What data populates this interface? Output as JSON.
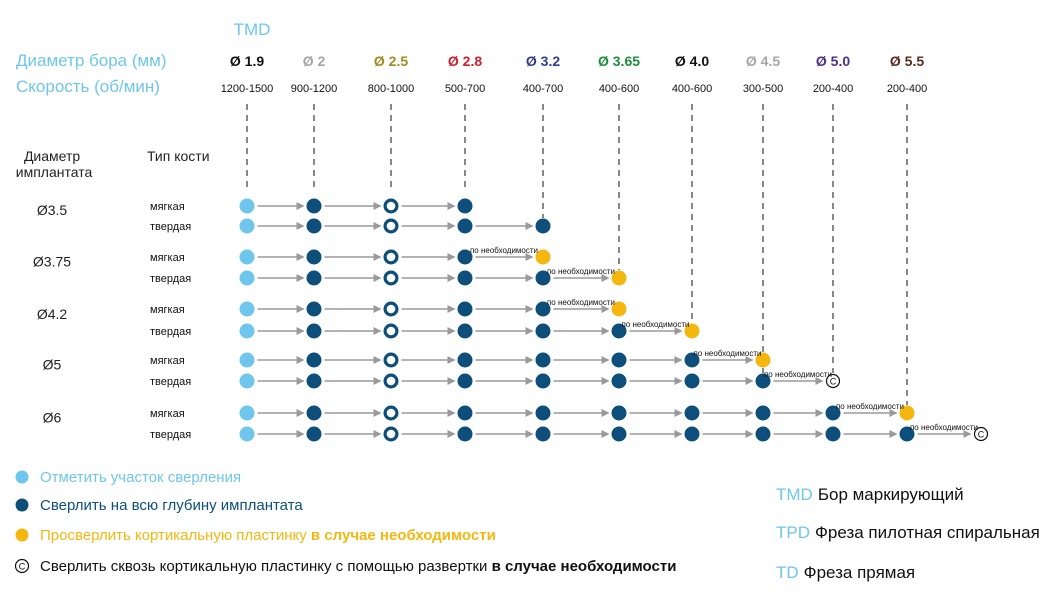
{
  "header": {
    "tmd_label": "TMD",
    "diameter_label": "Диаметр бора (мм)",
    "speed_label": "Скорость (об/мин)",
    "implant_diameter_label": "Диаметр имплантата",
    "bone_type_label": "Тип кости"
  },
  "drills": [
    {
      "label": "Ø 1.9",
      "speed": "1200-1500",
      "color": "#111111"
    },
    {
      "label": "Ø 2",
      "speed": "900-1200",
      "color": "#a6a6a6"
    },
    {
      "label": "Ø 2.5",
      "speed": "800-1000",
      "color": "#a08a1e"
    },
    {
      "label": "Ø 2.8",
      "speed": "500-700",
      "color": "#cc2030"
    },
    {
      "label": "Ø 3.2",
      "speed": "400-700",
      "color": "#2e3d8f"
    },
    {
      "label": "Ø 3.65",
      "speed": "400-600",
      "color": "#1f8c3b"
    },
    {
      "label": "Ø 4.0",
      "speed": "400-600",
      "color": "#111111"
    },
    {
      "label": "Ø 4.5",
      "speed": "300-500",
      "color": "#a6a6a6"
    },
    {
      "label": "Ø 5.0",
      "speed": "200-400",
      "color": "#4b2f8a"
    },
    {
      "label": "Ø 5.5",
      "speed": "200-400",
      "color": "#5a2a1e"
    }
  ],
  "bone_types": {
    "soft": "мягкая",
    "hard": "твердая"
  },
  "need_label": "по необходимости",
  "c_symbol": "C",
  "implants": [
    {
      "label": "Ø3.5",
      "soft": [
        "L",
        "D",
        "R",
        "D"
      ],
      "hard": [
        "L",
        "D",
        "R",
        "D",
        "D"
      ],
      "need_soft": [],
      "need_hard": []
    },
    {
      "label": "Ø3.75",
      "soft": [
        "L",
        "D",
        "R",
        "D",
        "Y"
      ],
      "hard": [
        "L",
        "D",
        "R",
        "D",
        "D",
        "Y"
      ],
      "need_soft": [
        4
      ],
      "need_hard": [
        5
      ]
    },
    {
      "label": "Ø4.2",
      "soft": [
        "L",
        "D",
        "R",
        "D",
        "D",
        "Y"
      ],
      "hard": [
        "L",
        "D",
        "R",
        "D",
        "D",
        "D",
        "Y"
      ],
      "need_soft": [
        5
      ],
      "need_hard": [
        6
      ]
    },
    {
      "label": "Ø5",
      "soft": [
        "L",
        "D",
        "R",
        "D",
        "D",
        "D",
        "D",
        "Y"
      ],
      "hard": [
        "L",
        "D",
        "R",
        "D",
        "D",
        "D",
        "D",
        "D",
        "C"
      ],
      "need_soft": [
        7
      ],
      "need_hard": [
        8
      ]
    },
    {
      "label": "Ø6",
      "soft": [
        "L",
        "D",
        "R",
        "D",
        "D",
        "D",
        "D",
        "D",
        "D",
        "Y"
      ],
      "hard": [
        "L",
        "D",
        "R",
        "D",
        "D",
        "D",
        "D",
        "D",
        "D",
        "D",
        "C"
      ],
      "need_soft": [
        9
      ],
      "need_hard": [
        10
      ]
    }
  ],
  "colors": {
    "light": "#6ec6ec",
    "dark": "#0d4f7a",
    "yellow": "#f3b70f",
    "arrow": "#9a9a9a",
    "accent": "#6ec6ec"
  },
  "legend": [
    {
      "icon": "light",
      "text": "Отметить участок сверления",
      "bold": ""
    },
    {
      "icon": "dark",
      "text": "Сверлить на всю глубину имплантата",
      "bold": ""
    },
    {
      "icon": "yellow",
      "text": "Просверлить кортикальную пластинку ",
      "bold": "в случае необходимости"
    },
    {
      "icon": "c",
      "text": "Сверлить сквозь кортикальную пластинку с помощью развертки ",
      "bold": "в случае необходимости"
    }
  ],
  "abbreviations": [
    {
      "abbr": "TMD",
      "text": "Бор маркирующий"
    },
    {
      "abbr": "TPD",
      "text": "Фреза пилотная спиральная"
    },
    {
      "abbr": "TD",
      "text": "Фреза прямая"
    }
  ]
}
